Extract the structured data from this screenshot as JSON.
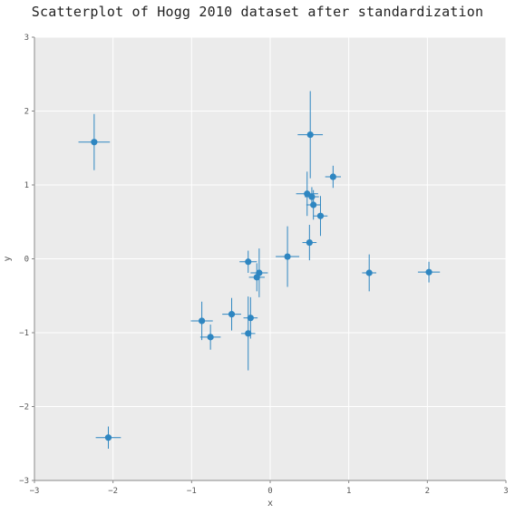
{
  "chart_data": {
    "type": "scatter",
    "title": "Scatterplot of Hogg 2010 dataset after standardization",
    "xlabel": "x",
    "ylabel": "y",
    "xlim": [
      -3,
      3
    ],
    "ylim": [
      -3,
      3
    ],
    "xticks": [
      "−3",
      "−2",
      "−1",
      "0",
      "1",
      "2",
      "3"
    ],
    "yticks": [
      "−3",
      "−2",
      "−1",
      "0",
      "1",
      "2",
      "3"
    ],
    "grid": true,
    "background": "#ebebeb",
    "marker_color": "#2e86c1",
    "points": [
      {
        "x": -2.24,
        "y": 1.58,
        "xerr": 0.2,
        "yerr": 0.38
      },
      {
        "x": -2.06,
        "y": -2.42,
        "xerr": 0.16,
        "yerr": 0.15
      },
      {
        "x": -0.87,
        "y": -0.84,
        "xerr": 0.14,
        "yerr": 0.26
      },
      {
        "x": -0.76,
        "y": -1.06,
        "xerr": 0.13,
        "yerr": 0.17
      },
      {
        "x": -0.49,
        "y": -0.75,
        "xerr": 0.12,
        "yerr": 0.22
      },
      {
        "x": -0.28,
        "y": -0.04,
        "xerr": 0.11,
        "yerr": 0.15
      },
      {
        "x": -0.28,
        "y": -1.01,
        "xerr": 0.09,
        "yerr": 0.5
      },
      {
        "x": -0.25,
        "y": -0.8,
        "xerr": 0.09,
        "yerr": 0.28
      },
      {
        "x": -0.17,
        "y": -0.25,
        "xerr": 0.1,
        "yerr": 0.19
      },
      {
        "x": -0.14,
        "y": -0.19,
        "xerr": 0.11,
        "yerr": 0.33
      },
      {
        "x": 0.22,
        "y": 0.03,
        "xerr": 0.15,
        "yerr": 0.41
      },
      {
        "x": 0.47,
        "y": 0.88,
        "xerr": 0.14,
        "yerr": 0.3
      },
      {
        "x": 0.5,
        "y": 0.22,
        "xerr": 0.09,
        "yerr": 0.24
      },
      {
        "x": 0.51,
        "y": 1.68,
        "xerr": 0.16,
        "yerr": 0.59
      },
      {
        "x": 0.53,
        "y": 0.84,
        "xerr": 0.09,
        "yerr": 0.13
      },
      {
        "x": 0.55,
        "y": 0.73,
        "xerr": 0.09,
        "yerr": 0.2
      },
      {
        "x": 0.64,
        "y": 0.58,
        "xerr": 0.09,
        "yerr": 0.27
      },
      {
        "x": 0.8,
        "y": 1.11,
        "xerr": 0.1,
        "yerr": 0.15
      },
      {
        "x": 1.26,
        "y": -0.19,
        "xerr": 0.09,
        "yerr": 0.25
      },
      {
        "x": 2.02,
        "y": -0.18,
        "xerr": 0.14,
        "yerr": 0.14
      }
    ]
  }
}
